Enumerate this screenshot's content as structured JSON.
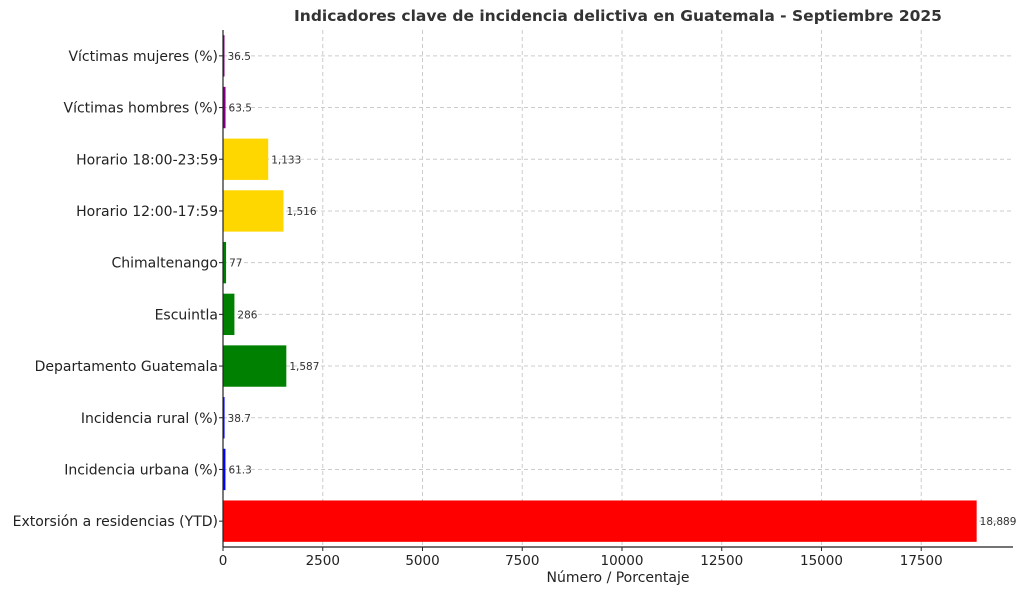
{
  "chart_data": {
    "type": "bar",
    "orientation": "horizontal",
    "title": "Indicadores clave de incidencia delictiva en Guatemala - Septiembre 2025",
    "xlabel": "Número / Porcentaje",
    "ylabel": "",
    "xlim": [
      0,
      19800
    ],
    "xticks": [
      0,
      2500,
      5000,
      7500,
      10000,
      12500,
      15000,
      17500
    ],
    "xtick_labels": [
      "0",
      "2500",
      "5000",
      "7500",
      "10000",
      "12500",
      "15000",
      "17500"
    ],
    "grid": true,
    "categories": [
      "Extorsión a residencias (YTD)",
      "Incidencia urbana (%)",
      "Incidencia rural (%)",
      "Departamento Guatemala",
      "Escuintla",
      "Chimaltenango",
      "Horario 12:00-17:59",
      "Horario 18:00-23:59",
      "Víctimas hombres (%)",
      "Víctimas mujeres (%)"
    ],
    "values": [
      18889,
      61.3,
      38.7,
      1587,
      286,
      77,
      1516,
      1133,
      63.5,
      36.5
    ],
    "value_labels": [
      "18,889",
      "61.3",
      "38.7",
      "1,587",
      "286",
      "77",
      "1,516",
      "1,133",
      "63.5",
      "36.5"
    ],
    "colors": [
      "#ff0000",
      "#0000ff",
      "#0000ff",
      "#008000",
      "#008000",
      "#008000",
      "#ffd700",
      "#ffd700",
      "#800080",
      "#800080"
    ]
  }
}
